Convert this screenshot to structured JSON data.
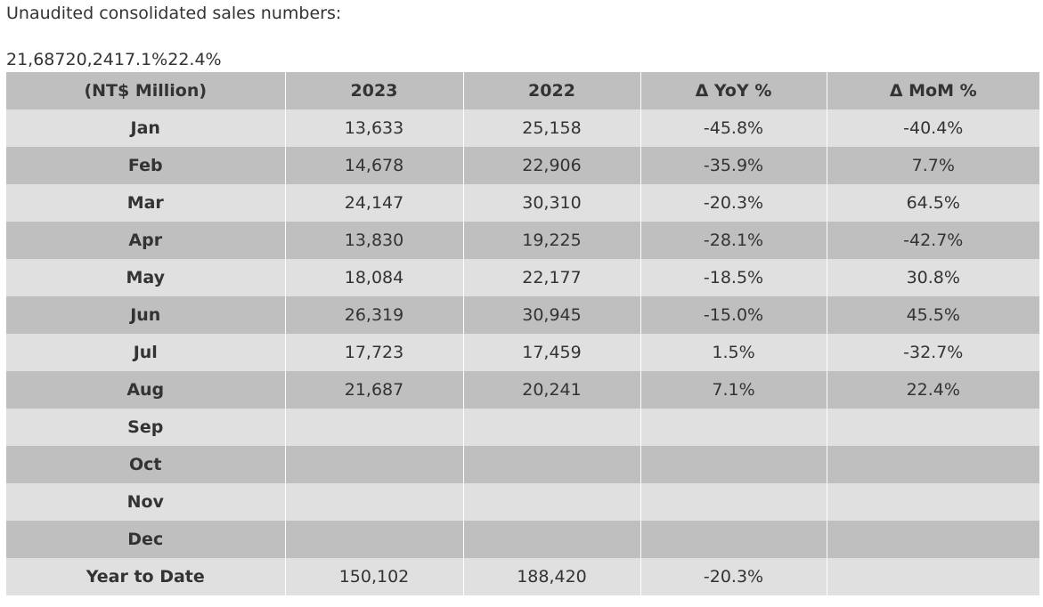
{
  "intro_text": "Unaudited consolidated sales numbers:",
  "stray_text": "21,68720,2417.1%22.4%",
  "table": {
    "headers": [
      "(NT$ Million)",
      "2023",
      "2022",
      "Δ YoY %",
      "Δ MoM %"
    ],
    "rows": [
      {
        "month": "Jan",
        "y2023": "13,633",
        "y2022": "25,158",
        "yoy": "-45.8%",
        "mom": "-40.4%"
      },
      {
        "month": "Feb",
        "y2023": "14,678",
        "y2022": "22,906",
        "yoy": "-35.9%",
        "mom": "7.7%"
      },
      {
        "month": "Mar",
        "y2023": "24,147",
        "y2022": "30,310",
        "yoy": "-20.3%",
        "mom": "64.5%"
      },
      {
        "month": "Apr",
        "y2023": "13,830",
        "y2022": "19,225",
        "yoy": "-28.1%",
        "mom": "-42.7%"
      },
      {
        "month": "May",
        "y2023": "18,084",
        "y2022": "22,177",
        "yoy": "-18.5%",
        "mom": "30.8%"
      },
      {
        "month": "Jun",
        "y2023": "26,319",
        "y2022": "30,945",
        "yoy": "-15.0%",
        "mom": "45.5%"
      },
      {
        "month": "Jul",
        "y2023": "17,723",
        "y2022": "17,459",
        "yoy": "1.5%",
        "mom": "-32.7%"
      },
      {
        "month": "Aug",
        "y2023": "21,687",
        "y2022": "20,241",
        "yoy": "7.1%",
        "mom": "22.4%"
      },
      {
        "month": "Sep",
        "y2023": "",
        "y2022": "",
        "yoy": "",
        "mom": ""
      },
      {
        "month": "Oct",
        "y2023": "",
        "y2022": "",
        "yoy": "",
        "mom": ""
      },
      {
        "month": "Nov",
        "y2023": "",
        "y2022": "",
        "yoy": "",
        "mom": ""
      },
      {
        "month": "Dec",
        "y2023": "",
        "y2022": "",
        "yoy": "",
        "mom": ""
      }
    ],
    "total": {
      "label": "Year to Date",
      "y2023": "150,102",
      "y2022": "188,420",
      "yoy": "-20.3%",
      "mom": ""
    }
  }
}
